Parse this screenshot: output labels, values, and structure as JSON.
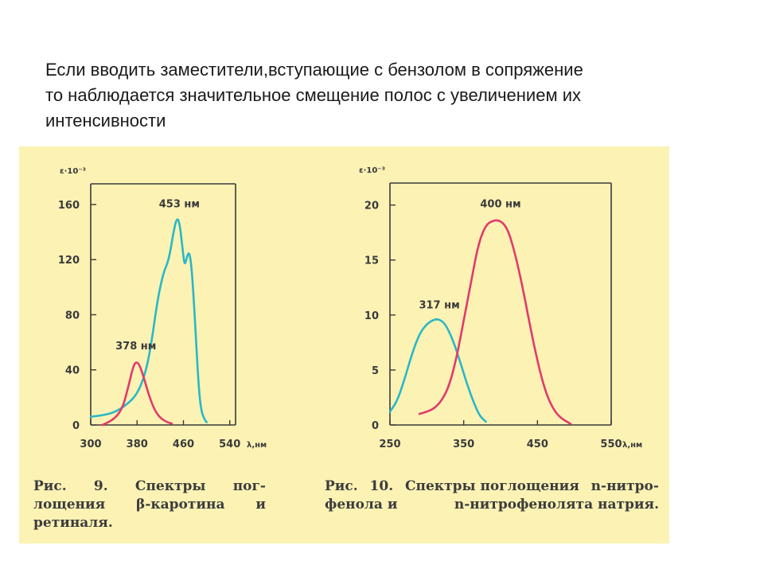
{
  "text": {
    "line1": "Если вводить заместители,вступающие с бензолом в сопряжение",
    "line2": "то наблюдается значительное смещение полос с увеличением их",
    "line3": "интенсивности"
  },
  "figures": {
    "fig9": {
      "caption": [
        [
          "Рис.",
          "9.",
          "Спектры",
          "пог-"
        ],
        [
          "лощения",
          "β-каротина",
          "и"
        ],
        [
          "ретиналя."
        ]
      ]
    },
    "fig10": {
      "caption": [
        [
          "Рис.",
          "10.",
          "Спектры поглощения",
          "n-нитро-"
        ],
        [
          "фенола и",
          "n-нитрофенолята натрия."
        ]
      ]
    }
  },
  "colors": {
    "background": "#fcf2b4",
    "cyan": "#2ab7c9",
    "pink": "#e23a6c",
    "axis": "#3a3a3a"
  },
  "chart_data": [
    {
      "type": "line",
      "ylabel": "ε·10⁻³",
      "xlabel": "λ,нм",
      "xlim": [
        300,
        550
      ],
      "ylim": [
        0,
        175
      ],
      "xticks": [
        300,
        380,
        460,
        540
      ],
      "yticks": [
        0,
        40,
        80,
        120,
        160
      ],
      "annotations": [
        {
          "text": "378 нм",
          "x": 378,
          "y": 55
        },
        {
          "text": "453 нм",
          "x": 453,
          "y": 158
        }
      ],
      "series": [
        {
          "color": "#2ab7c9",
          "points": [
            [
              300,
              6
            ],
            [
              320,
              7
            ],
            [
              340,
              9
            ],
            [
              360,
              14
            ],
            [
              380,
              22
            ],
            [
              395,
              38
            ],
            [
              405,
              60
            ],
            [
              415,
              90
            ],
            [
              425,
              110
            ],
            [
              435,
              120
            ],
            [
              442,
              138
            ],
            [
              448,
              150
            ],
            [
              453,
              148
            ],
            [
              458,
              130
            ],
            [
              462,
              115
            ],
            [
              466,
              122
            ],
            [
              470,
              126
            ],
            [
              474,
              115
            ],
            [
              478,
              90
            ],
            [
              482,
              60
            ],
            [
              486,
              30
            ],
            [
              490,
              12
            ],
            [
              495,
              5
            ],
            [
              500,
              2
            ]
          ]
        },
        {
          "color": "#e23a6c",
          "points": [
            [
              320,
              0
            ],
            [
              340,
              4
            ],
            [
              355,
              12
            ],
            [
              365,
              28
            ],
            [
              373,
              42
            ],
            [
              378,
              46
            ],
            [
              384,
              44
            ],
            [
              392,
              34
            ],
            [
              400,
              22
            ],
            [
              410,
              11
            ],
            [
              420,
              5
            ],
            [
              432,
              2
            ],
            [
              440,
              1
            ]
          ]
        }
      ]
    },
    {
      "type": "line",
      "ylabel": "ε·10⁻³",
      "xlabel": "λ,нм",
      "xlim": [
        250,
        550
      ],
      "ylim": [
        0,
        22
      ],
      "xticks": [
        250,
        350,
        450,
        550
      ],
      "yticks": [
        0,
        5,
        10,
        15,
        20
      ],
      "annotations": [
        {
          "text": "317 нм",
          "x": 317,
          "y": 10.6
        },
        {
          "text": "400 нм",
          "x": 400,
          "y": 19.8
        }
      ],
      "series": [
        {
          "color": "#2ab7c9",
          "points": [
            [
              250,
              1.2
            ],
            [
              260,
              2.2
            ],
            [
              270,
              4.2
            ],
            [
              280,
              6.5
            ],
            [
              290,
              8.3
            ],
            [
              300,
              9.2
            ],
            [
              310,
              9.6
            ],
            [
              317,
              9.6
            ],
            [
              325,
              9.2
            ],
            [
              335,
              7.8
            ],
            [
              345,
              5.8
            ],
            [
              355,
              3.6
            ],
            [
              365,
              1.8
            ],
            [
              372,
              0.8
            ],
            [
              380,
              0.3
            ]
          ]
        },
        {
          "color": "#e23a6c",
          "points": [
            [
              290,
              1
            ],
            [
              300,
              1.2
            ],
            [
              310,
              1.5
            ],
            [
              320,
              2.2
            ],
            [
              330,
              3.5
            ],
            [
              340,
              6
            ],
            [
              350,
              9.5
            ],
            [
              360,
              13
            ],
            [
              370,
              16.5
            ],
            [
              380,
              18.2
            ],
            [
              390,
              18.6
            ],
            [
              400,
              18.6
            ],
            [
              410,
              17.8
            ],
            [
              420,
              15.5
            ],
            [
              430,
              12.5
            ],
            [
              440,
              9
            ],
            [
              450,
              5.8
            ],
            [
              460,
              3.2
            ],
            [
              470,
              1.6
            ],
            [
              480,
              0.7
            ],
            [
              495,
              0.1
            ]
          ]
        }
      ]
    }
  ]
}
